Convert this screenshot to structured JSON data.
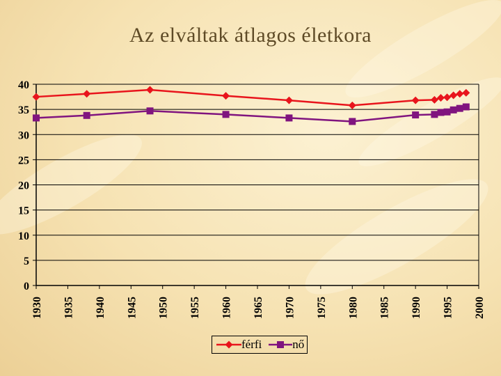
{
  "chart_data": {
    "type": "line",
    "title": "Az elváltak átlagos életkora",
    "xlabel": "",
    "ylabel": "",
    "xlim": [
      1930,
      2000
    ],
    "ylim": [
      0,
      40
    ],
    "y_ticks": [
      0,
      5,
      10,
      15,
      20,
      25,
      30,
      35,
      40
    ],
    "x_ticks": [
      1930,
      1935,
      1940,
      1945,
      1950,
      1955,
      1960,
      1965,
      1970,
      1975,
      1980,
      1985,
      1990,
      1995,
      2000
    ],
    "grid": "horizontal",
    "legend": "bottom",
    "series": [
      {
        "name": "férfi",
        "color": "#e8141c",
        "marker": "diamond",
        "points": [
          [
            1930,
            37.5
          ],
          [
            1938,
            38.1
          ],
          [
            1948,
            38.9
          ],
          [
            1960,
            37.7
          ],
          [
            1970,
            36.8
          ],
          [
            1980,
            35.8
          ],
          [
            1990,
            36.8
          ],
          [
            1993,
            36.9
          ],
          [
            1994,
            37.3
          ],
          [
            1995,
            37.4
          ],
          [
            1996,
            37.8
          ],
          [
            1997,
            38.1
          ],
          [
            1998,
            38.3
          ]
        ],
        "x": [
          1930,
          1938,
          1948,
          1960,
          1970,
          1980,
          1990,
          1993,
          1994,
          1995,
          1996,
          1997,
          1998
        ],
        "values": [
          37.5,
          38.1,
          38.9,
          37.7,
          36.8,
          35.8,
          36.8,
          36.9,
          37.3,
          37.4,
          37.8,
          38.1,
          38.3
        ]
      },
      {
        "name": "nő",
        "color": "#80147f",
        "marker": "square",
        "points": [
          [
            1930,
            33.3
          ],
          [
            1938,
            33.8
          ],
          [
            1948,
            34.7
          ],
          [
            1960,
            34.0
          ],
          [
            1970,
            33.3
          ],
          [
            1980,
            32.6
          ],
          [
            1990,
            33.9
          ],
          [
            1993,
            34.0
          ],
          [
            1994,
            34.4
          ],
          [
            1995,
            34.5
          ],
          [
            1996,
            34.9
          ],
          [
            1997,
            35.2
          ],
          [
            1998,
            35.5
          ]
        ],
        "x": [
          1930,
          1938,
          1948,
          1960,
          1970,
          1980,
          1990,
          1993,
          1994,
          1995,
          1996,
          1997,
          1998
        ],
        "values": [
          33.3,
          33.8,
          34.7,
          34.0,
          33.3,
          32.6,
          33.9,
          34.0,
          34.4,
          34.5,
          34.9,
          35.2,
          35.5
        ]
      }
    ]
  }
}
